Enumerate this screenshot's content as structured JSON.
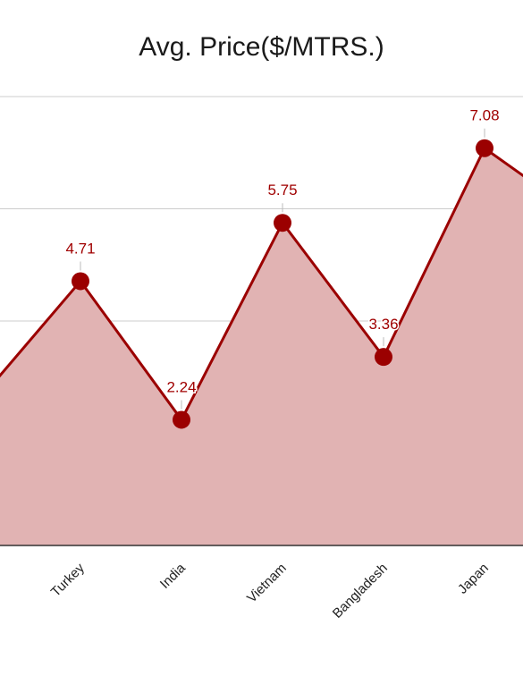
{
  "chart_data": {
    "type": "area",
    "title": "Avg. Price($/MTRS.)",
    "categories": [
      "",
      "Turkey",
      "India",
      "Vietnam",
      "Bangladesh",
      "Japan",
      ""
    ],
    "series": [
      {
        "values": [
          2.6,
          4.71,
          2.24,
          5.75,
          3.36,
          7.08,
          5.8
        ]
      }
    ],
    "data_labels": [
      "",
      "4.71",
      "2.24",
      "5.75",
      "3.36",
      "7.08",
      ""
    ],
    "ylim": [
      0,
      8
    ],
    "grid": true,
    "colors": {
      "line": "#9b0000",
      "fill": "#e1b3b3",
      "label": "#a00000",
      "grid": "#cccccc"
    }
  }
}
